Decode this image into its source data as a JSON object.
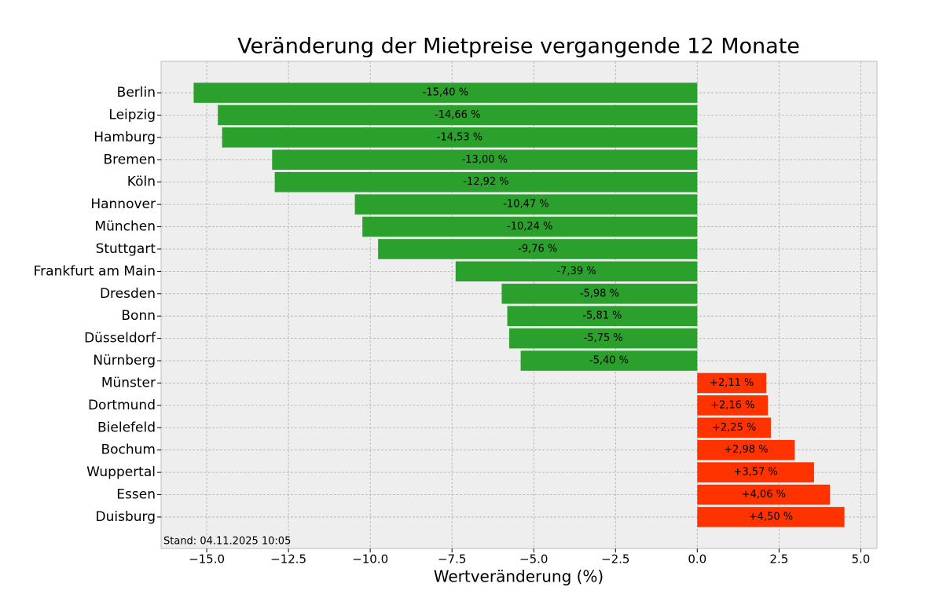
{
  "chart_data": {
    "type": "hbar",
    "title": "Veränderung der Mietpreise vergangende 12 Monate",
    "x_label": "Wertveränderung (%)",
    "annotation": "Stand: 04.11.2025 10:05",
    "categories": [
      "Berlin",
      "Leipzig",
      "Hamburg",
      "Bremen",
      "Köln",
      "Hannover",
      "München",
      "Stuttgart",
      "Frankfurt am Main",
      "Dresden",
      "Bonn",
      "Düsseldorf",
      "Nürnberg",
      "Münster",
      "Dortmund",
      "Bielefeld",
      "Bochum",
      "Wuppertal",
      "Essen",
      "Duisburg"
    ],
    "values": [
      -15.4,
      -14.66,
      -14.53,
      -13.0,
      -12.92,
      -10.47,
      -10.24,
      -9.76,
      -7.39,
      -5.98,
      -5.81,
      -5.75,
      -5.4,
      2.11,
      2.16,
      2.25,
      2.98,
      3.57,
      4.06,
      4.5
    ],
    "value_labels": [
      "-15,40 %",
      "-14,66 %",
      "-14,53 %",
      "-13,00 %",
      "-12,92 %",
      "-10,47 %",
      "-10,24 %",
      "-9,76 %",
      "-7,39 %",
      "-5,98 %",
      "-5,81 %",
      "-5,75 %",
      "-5,40 %",
      "+2,11 %",
      "+2,16 %",
      "+2,25 %",
      "+2,98 %",
      "+3,57 %",
      "+4,06 %",
      "+4,50 %"
    ],
    "colors": [
      "#2ca02c",
      "#2ca02c",
      "#2ca02c",
      "#2ca02c",
      "#2ca02c",
      "#2ca02c",
      "#2ca02c",
      "#2ca02c",
      "#2ca02c",
      "#2ca02c",
      "#2ca02c",
      "#2ca02c",
      "#2ca02c",
      "#ff3300",
      "#ff3300",
      "#ff3300",
      "#ff3300",
      "#ff3300",
      "#ff3300",
      "#ff3300"
    ],
    "xlim": [
      -16.395,
      5.495
    ],
    "xticks": [
      {
        "value": -15,
        "label": "−15.0"
      },
      {
        "value": -12.5,
        "label": "−12.5"
      },
      {
        "value": -10,
        "label": "−10.0"
      },
      {
        "value": -7.5,
        "label": "−7.5"
      },
      {
        "value": -5,
        "label": "−5.0"
      },
      {
        "value": -2.5,
        "label": "−2.5"
      },
      {
        "value": 0,
        "label": "0.0"
      },
      2.5,
      {
        "value": 5,
        "label": "5.0"
      }
    ],
    "grid": true
  }
}
